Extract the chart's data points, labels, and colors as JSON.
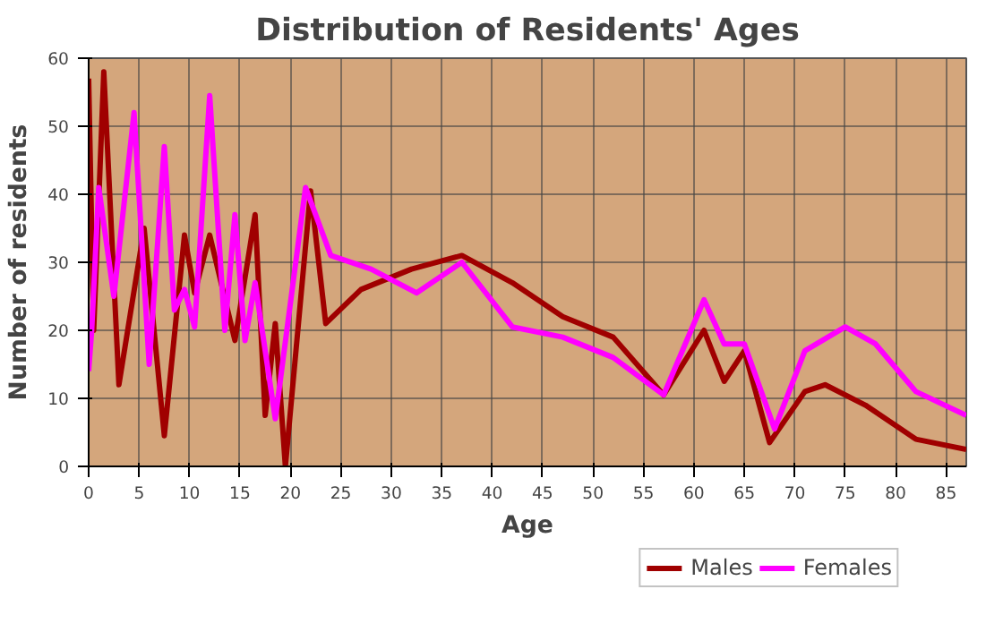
{
  "chart_data": {
    "type": "line",
    "title": "Distribution of Residents' Ages",
    "xlabel": "Age",
    "ylabel": "Number of residents",
    "xlim": [
      0,
      87
    ],
    "xticks": [
      0,
      5,
      10,
      15,
      20,
      25,
      30,
      35,
      40,
      45,
      50,
      55,
      60,
      65,
      70,
      75,
      80,
      85
    ],
    "ylim": [
      0,
      60
    ],
    "yticks": [
      0,
      10,
      20,
      30,
      40,
      50,
      60
    ],
    "grid": true,
    "legend": "bottom",
    "line_style": "solid",
    "series": [
      {
        "name": "Males",
        "color": "#a00000",
        "x": [
          0,
          0.5,
          1.5,
          3,
          5.5,
          7.5,
          9.5,
          10.5,
          12,
          14.5,
          16.5,
          17.5,
          18.5,
          19.5,
          22,
          23.5,
          27,
          32,
          37,
          42,
          47,
          52,
          57,
          61,
          63,
          65,
          67.5,
          71,
          73,
          77,
          82,
          87
        ],
        "values": [
          57,
          20,
          58,
          12,
          35,
          4.5,
          34,
          25.5,
          34,
          18.5,
          37,
          7.5,
          21,
          0,
          40.5,
          21,
          26,
          29,
          31,
          27,
          22,
          19,
          10.5,
          20,
          12.5,
          17,
          3.5,
          11,
          12,
          9,
          4,
          2.5
        ]
      },
      {
        "name": "Females",
        "color": "#ff00ff",
        "x": [
          0,
          0.3,
          1,
          2.5,
          4.5,
          6,
          7.5,
          8.5,
          9.5,
          10.5,
          12,
          13.5,
          14.5,
          15.5,
          16.5,
          18.5,
          21.5,
          24,
          28,
          32.5,
          37,
          42,
          47,
          52,
          57,
          61,
          63,
          65,
          68,
          71,
          75,
          78,
          82,
          87
        ],
        "values": [
          14,
          20,
          41,
          25,
          52,
          15,
          47,
          23,
          26,
          20.5,
          54.5,
          20,
          37,
          18.5,
          27,
          7,
          41,
          31,
          29,
          25.5,
          30,
          20.5,
          19,
          16,
          10.5,
          24.5,
          18,
          18,
          5.5,
          17,
          20.5,
          18,
          11,
          7.5
        ]
      }
    ]
  }
}
